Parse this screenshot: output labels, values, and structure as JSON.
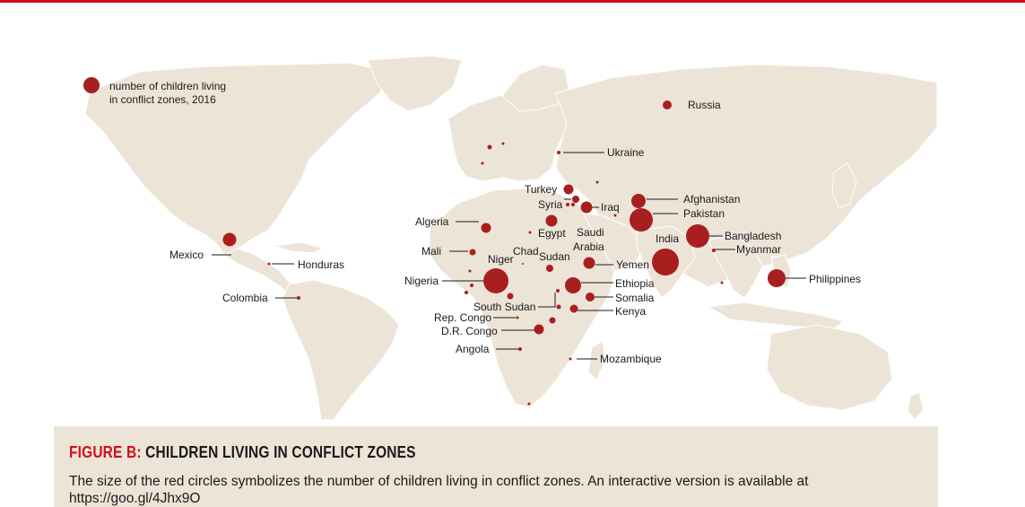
{
  "legend": {
    "line1": "number of children living",
    "line2": "in conflict zones, 2016",
    "color": "#a81f1f"
  },
  "colors": {
    "accent": "#d0101a",
    "dot": "#a81f1f",
    "land": "#ede4d8",
    "caption_bg": "#ede4d8"
  },
  "labels": {
    "russia": "Russia",
    "ukraine": "Ukraine",
    "turkey": "Turkey",
    "syria": "Syria",
    "iraq": "Iraq",
    "afghanistan": "Afghanistan",
    "pakistan": "Pakistan",
    "algeria": "Algeria",
    "egypt": "Egypt",
    "saudi_line1": "Saudi",
    "saudi_line2": "Arabia",
    "india": "India",
    "bangladesh": "Bangladesh",
    "myanmar": "Myanmar",
    "mexico": "Mexico",
    "honduras": "Honduras",
    "mali": "Mali",
    "chad": "Chad",
    "niger": "Niger",
    "sudan": "Sudan",
    "yemen": "Yemen",
    "philippines": "Philippines",
    "nigeria": "Nigeria",
    "ethiopia": "Ethiopia",
    "colombia": "Colombia",
    "somalia": "Somalia",
    "south_sudan": "South Sudan",
    "kenya": "Kenya",
    "rep_congo": "Rep. Congo",
    "dr_congo": "D.R. Congo",
    "angola": "Angola",
    "mozambique": "Mozambique"
  },
  "caption": {
    "prefix": "FIGURE B:",
    "title": "CHILDREN LIVING IN CONFLICT ZONES",
    "description": "The size of the red circles symbolizes the number of children living in conflict zones. An interactive version is available at https://goo.gl/4Jhx9O"
  }
}
